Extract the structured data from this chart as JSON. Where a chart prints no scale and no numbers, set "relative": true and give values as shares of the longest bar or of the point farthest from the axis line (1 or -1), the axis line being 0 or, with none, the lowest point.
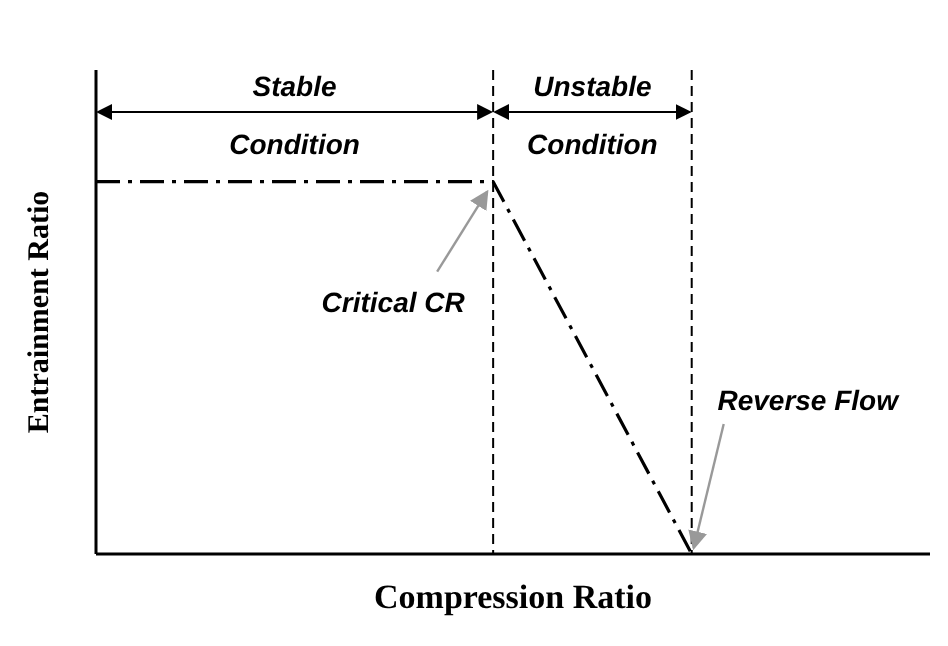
{
  "chart_data": {
    "type": "line",
    "relative": true,
    "xlabel": "Compression Ratio",
    "ylabel": "Entrainment Ratio",
    "categories": [
      null,
      null,
      null,
      null
    ],
    "ylim": [
      0,
      1.3
    ],
    "grid": false,
    "line_style": "dashed",
    "marker": "none",
    "series": [
      {
        "color": "#000000",
        "values": [
          1,
          1,
          1,
          0
        ]
      }
    ],
    "annotations": [
      "Stable",
      "Condition",
      "Unstable",
      "Condition",
      "Critical CR",
      "Reverse Flow"
    ]
  }
}
